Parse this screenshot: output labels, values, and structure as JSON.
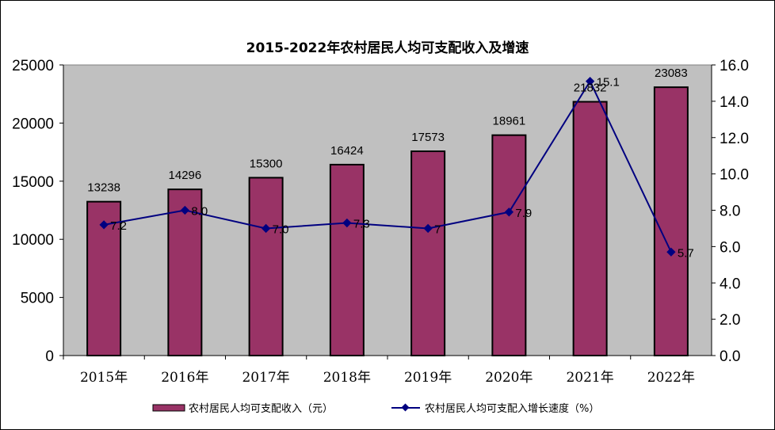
{
  "chart_data": {
    "type": "bar+line",
    "title": "2015-2022年农村居民人均可支配收入及增速",
    "categories": [
      "2015年",
      "2016年",
      "2017年",
      "2018年",
      "2019年",
      "2020年",
      "2021年",
      "2022年"
    ],
    "series": [
      {
        "name": "农村居民人均可支配收入（元）",
        "type": "bar",
        "axis": "left",
        "color": "#993366",
        "values": [
          13238,
          14296,
          15300,
          16424,
          17573,
          18961,
          21832,
          23083
        ],
        "labels": [
          "13238",
          "14296",
          "15300",
          "16424",
          "17573",
          "18961",
          "21832",
          "23083"
        ]
      },
      {
        "name": "农村居民人均可支配入增长速度（%）",
        "type": "line",
        "axis": "right",
        "color": "#000080",
        "values": [
          7.2,
          8.0,
          7.0,
          7.3,
          7.0,
          7.9,
          15.1,
          5.7
        ],
        "labels": [
          "7.2",
          "8.0",
          "7.0",
          "7.3",
          "7",
          "7.9",
          "15.1",
          "5.7"
        ]
      }
    ],
    "left_axis": {
      "min": 0,
      "max": 25000,
      "ticks": [
        "0",
        "5000",
        "10000",
        "15000",
        "20000",
        "25000"
      ]
    },
    "right_axis": {
      "min": 0,
      "max": 16,
      "ticks": [
        "0.0",
        "2.0",
        "4.0",
        "6.0",
        "8.0",
        "10.0",
        "12.0",
        "14.0",
        "16.0"
      ]
    },
    "plot_background": "#C0C0C0",
    "legend_position": "bottom"
  }
}
